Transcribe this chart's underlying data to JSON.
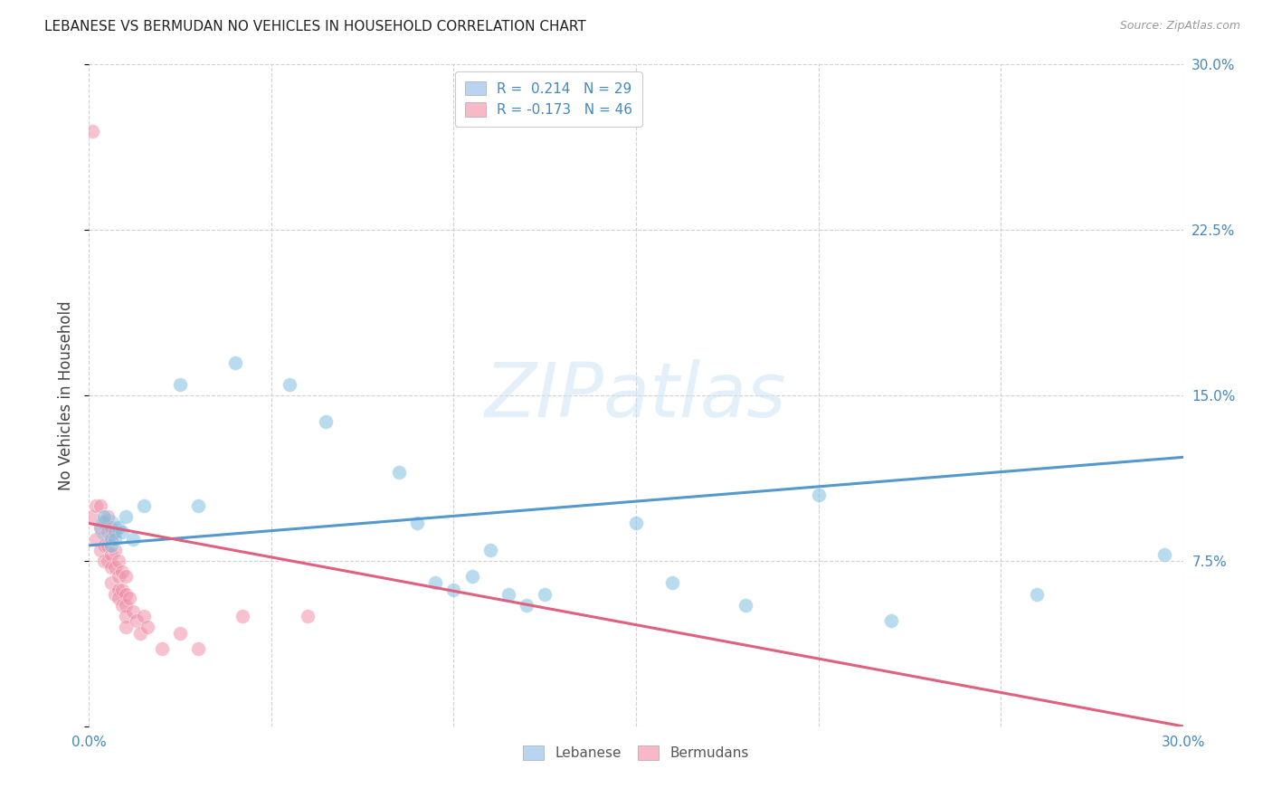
{
  "title": "LEBANESE VS BERMUDAN NO VEHICLES IN HOUSEHOLD CORRELATION CHART",
  "source": "Source: ZipAtlas.com",
  "ylabel": "No Vehicles in Household",
  "xlim": [
    0.0,
    0.3
  ],
  "ylim": [
    0.0,
    0.3
  ],
  "blue_color": "#7fbfdf",
  "pink_color": "#f090a8",
  "blue_line_color": "#5599cc",
  "pink_line_color": "#e06080",
  "watermark": "ZIPatlas",
  "lebanese_x": [
    0.004,
    0.006,
    0.007,
    0.008,
    0.009,
    0.01,
    0.012,
    0.015,
    0.025,
    0.03,
    0.04,
    0.055,
    0.065,
    0.085,
    0.09,
    0.095,
    0.1,
    0.105,
    0.11,
    0.115,
    0.12,
    0.125,
    0.15,
    0.16,
    0.18,
    0.2,
    0.22,
    0.26,
    0.295
  ],
  "lebanese_y": [
    0.095,
    0.082,
    0.085,
    0.09,
    0.088,
    0.095,
    0.085,
    0.1,
    0.155,
    0.1,
    0.165,
    0.155,
    0.138,
    0.115,
    0.092,
    0.065,
    0.062,
    0.068,
    0.08,
    0.06,
    0.055,
    0.06,
    0.092,
    0.065,
    0.055,
    0.105,
    0.048,
    0.06,
    0.078
  ],
  "lebanese_large_idx": 0,
  "bermudans_x": [
    0.001,
    0.001,
    0.002,
    0.002,
    0.003,
    0.003,
    0.003,
    0.004,
    0.004,
    0.004,
    0.005,
    0.005,
    0.005,
    0.005,
    0.006,
    0.006,
    0.006,
    0.006,
    0.006,
    0.007,
    0.007,
    0.007,
    0.007,
    0.008,
    0.008,
    0.008,
    0.008,
    0.009,
    0.009,
    0.009,
    0.01,
    0.01,
    0.01,
    0.01,
    0.01,
    0.011,
    0.012,
    0.013,
    0.014,
    0.015,
    0.016,
    0.02,
    0.025,
    0.03,
    0.042,
    0.06
  ],
  "bermudans_y": [
    0.27,
    0.095,
    0.1,
    0.085,
    0.1,
    0.09,
    0.08,
    0.092,
    0.082,
    0.075,
    0.095,
    0.088,
    0.082,
    0.075,
    0.09,
    0.085,
    0.078,
    0.072,
    0.065,
    0.088,
    0.08,
    0.072,
    0.06,
    0.075,
    0.068,
    0.062,
    0.058,
    0.07,
    0.062,
    0.055,
    0.068,
    0.06,
    0.055,
    0.05,
    0.045,
    0.058,
    0.052,
    0.048,
    0.042,
    0.05,
    0.045,
    0.035,
    0.042,
    0.035,
    0.05,
    0.05
  ],
  "blue_line_x0": 0.0,
  "blue_line_y0": 0.082,
  "blue_line_x1": 0.3,
  "blue_line_y1": 0.122,
  "pink_line_x0": 0.0,
  "pink_line_y0": 0.092,
  "pink_line_x1": 0.3,
  "pink_line_y1": 0.0,
  "legend_label_blue": "R =  0.214   N = 29",
  "legend_label_pink": "R = -0.173   N = 46",
  "legend_facecolor_blue": "#b8d4f0",
  "legend_facecolor_pink": "#f8b8c8"
}
